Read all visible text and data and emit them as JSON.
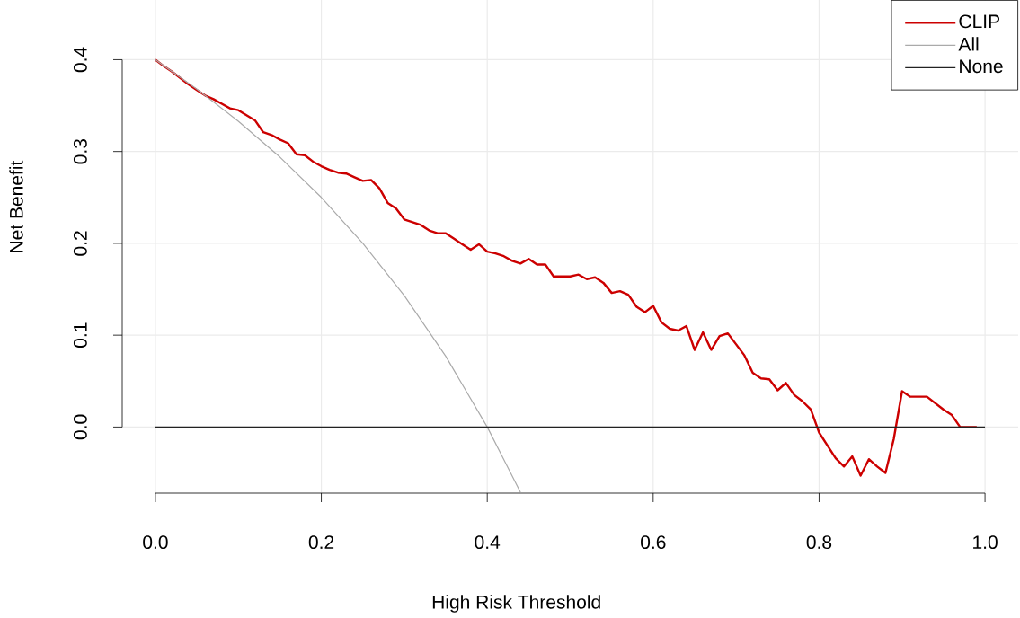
{
  "chart_data": {
    "type": "line",
    "xlabel": "High Risk Threshold",
    "ylabel": "Net Benefit",
    "xlim": [
      -0.04,
      1.04
    ],
    "ylim": [
      -0.072,
      0.465
    ],
    "xticks": [
      {
        "value": 0,
        "label": "0.0"
      },
      {
        "value": 0.2,
        "label": "0.2"
      },
      {
        "value": 0.4,
        "label": "0.4"
      },
      {
        "value": 0.6,
        "label": "0.6"
      },
      {
        "value": 0.8,
        "label": "0.8"
      },
      {
        "value": 1,
        "label": "1.0"
      }
    ],
    "yticks": [
      {
        "value": 0,
        "label": "0.0"
      },
      {
        "value": 0.1,
        "label": "0.1"
      },
      {
        "value": 0.2,
        "label": "0.2"
      },
      {
        "value": 0.3,
        "label": "0.3"
      },
      {
        "value": 0.4,
        "label": "0.4"
      }
    ],
    "grid": true,
    "legend": "top right",
    "marker": "none",
    "line_style": "solid",
    "series": [
      {
        "name": "CLIP",
        "color": "#cc0000",
        "x": [
          0,
          0.01,
          0.02,
          0.03,
          0.04,
          0.05,
          0.06,
          0.07,
          0.08,
          0.09,
          0.1,
          0.12,
          0.13,
          0.14,
          0.15,
          0.16,
          0.17,
          0.18,
          0.19,
          0.2,
          0.21,
          0.22,
          0.23,
          0.24,
          0.25,
          0.26,
          0.27,
          0.28,
          0.29,
          0.3,
          0.31,
          0.32,
          0.33,
          0.34,
          0.35,
          0.36,
          0.37,
          0.38,
          0.39,
          0.4,
          0.41,
          0.42,
          0.43,
          0.44,
          0.45,
          0.46,
          0.47,
          0.48,
          0.49,
          0.5,
          0.51,
          0.52,
          0.53,
          0.54,
          0.55,
          0.56,
          0.57,
          0.58,
          0.59,
          0.6,
          0.61,
          0.62,
          0.63,
          0.64,
          0.65,
          0.66,
          0.67,
          0.68,
          0.69,
          0.7,
          0.71,
          0.72,
          0.73,
          0.74,
          0.75,
          0.76,
          0.77,
          0.78,
          0.79,
          0.8,
          0.81,
          0.82,
          0.83,
          0.84,
          0.85,
          0.86,
          0.87,
          0.88,
          0.89,
          0.9,
          0.91,
          0.92,
          0.93,
          0.94,
          0.95,
          0.96,
          0.97,
          0.98,
          0.99
        ],
        "values": [
          0.4,
          0.393,
          0.387,
          0.38,
          0.373,
          0.367,
          0.361,
          0.357,
          0.352,
          0.347,
          0.345,
          0.334,
          0.321,
          0.318,
          0.313,
          0.309,
          0.297,
          0.296,
          0.289,
          0.284,
          0.28,
          0.277,
          0.276,
          0.272,
          0.268,
          0.269,
          0.26,
          0.244,
          0.238,
          0.226,
          0.223,
          0.22,
          0.214,
          0.211,
          0.211,
          0.205,
          0.199,
          0.193,
          0.199,
          0.191,
          0.189,
          0.186,
          0.181,
          0.178,
          0.183,
          0.177,
          0.177,
          0.164,
          0.164,
          0.164,
          0.166,
          0.161,
          0.163,
          0.157,
          0.146,
          0.148,
          0.144,
          0.131,
          0.125,
          0.132,
          0.114,
          0.107,
          0.105,
          0.11,
          0.084,
          0.103,
          0.084,
          0.099,
          0.102,
          0.09,
          0.078,
          0.059,
          0.053,
          0.052,
          0.04,
          0.048,
          0.035,
          0.028,
          0.019,
          -0.006,
          -0.02,
          -0.034,
          -0.043,
          -0.032,
          -0.053,
          -0.035,
          -0.043,
          -0.05,
          -0.013,
          0.039,
          0.033,
          0.033,
          0.033,
          0.026,
          0.019,
          0.013,
          0,
          0,
          0
        ]
      },
      {
        "name": "All",
        "color": "#aaaaaa",
        "x": [
          0,
          0.05,
          0.1,
          0.15,
          0.2,
          0.25,
          0.3,
          0.35,
          0.4,
          0.44
        ],
        "values": [
          0.4,
          0.368,
          0.333,
          0.294,
          0.25,
          0.2,
          0.143,
          0.077,
          0,
          -0.071
        ]
      },
      {
        "name": "None",
        "color": "#222222",
        "x": [
          0,
          1
        ],
        "values": [
          0,
          0
        ]
      }
    ]
  }
}
